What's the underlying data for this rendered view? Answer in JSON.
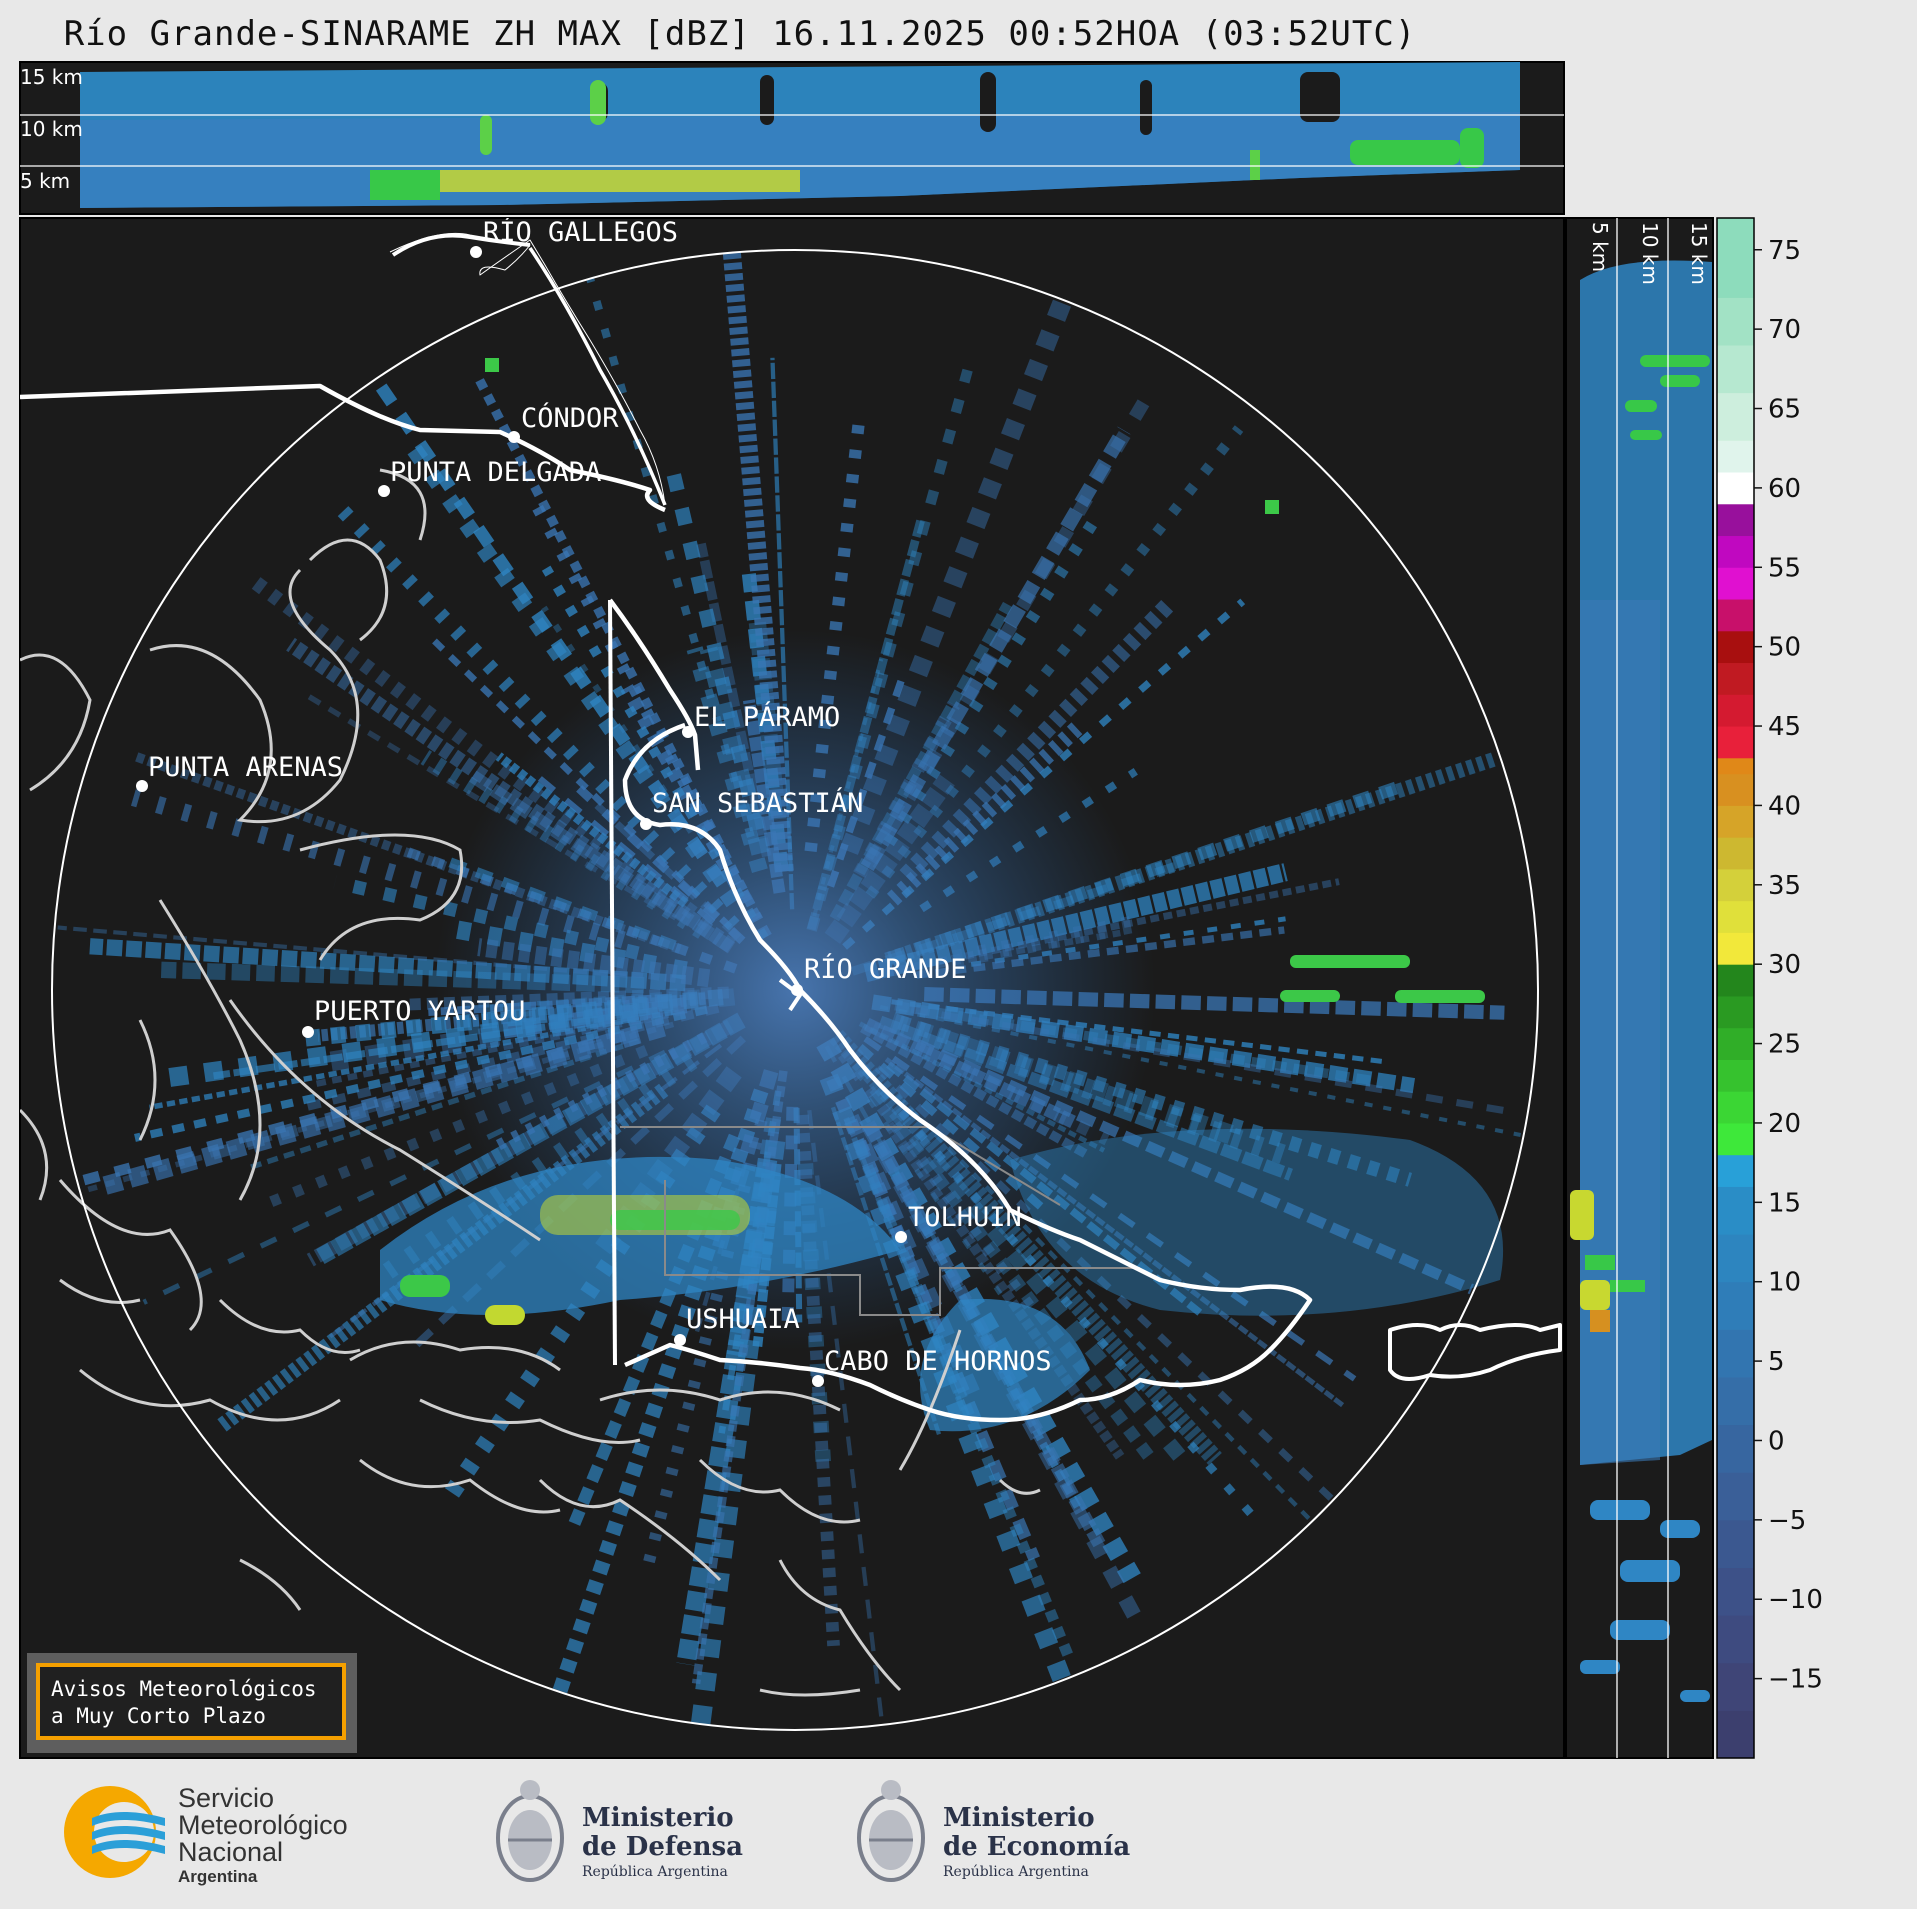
{
  "title": "Río Grande-SINARAME ZH MAX [dBZ] 16.11.2025 00:52HOA (03:52UTC)",
  "height_labels_top": [
    "15 km",
    "10 km",
    "5 km"
  ],
  "height_labels_side": [
    "5 km",
    "10 km",
    "15 km"
  ],
  "places": [
    {
      "name": "RÍO GALLEGOS"
    },
    {
      "name": "CÓNDOR"
    },
    {
      "name": "PUNTA DELGADA"
    },
    {
      "name": "EL PÁRAMO"
    },
    {
      "name": "PUNTA ARENAS"
    },
    {
      "name": "SAN SEBASTIÁN"
    },
    {
      "name": "RÍO GRANDE"
    },
    {
      "name": "PUERTO YARTOU"
    },
    {
      "name": "TOLHUIN"
    },
    {
      "name": "USHUAIA"
    },
    {
      "name": "CABO DE HORNOS"
    }
  ],
  "warning_box": {
    "line1": "Avisos Meteorológicos",
    "line2": "a Muy Corto Plazo"
  },
  "colorbar": {
    "unit": "dBZ",
    "ticks": [
      "75",
      "70",
      "65",
      "60",
      "55",
      "50",
      "45",
      "40",
      "35",
      "30",
      "25",
      "20",
      "15",
      "10",
      "5",
      "0",
      "−5",
      "−10",
      "−15"
    ]
  },
  "logos": {
    "smn": {
      "line1": "Servicio",
      "line2": "Meteorológico",
      "line3": "Nacional",
      "line4": "Argentina"
    },
    "defensa": {
      "line1": "Ministerio",
      "line2": "de Defensa",
      "line3": "República Argentina"
    },
    "economia": {
      "line1": "Ministerio",
      "line2": "de Economía",
      "line3": "República Argentina"
    }
  }
}
